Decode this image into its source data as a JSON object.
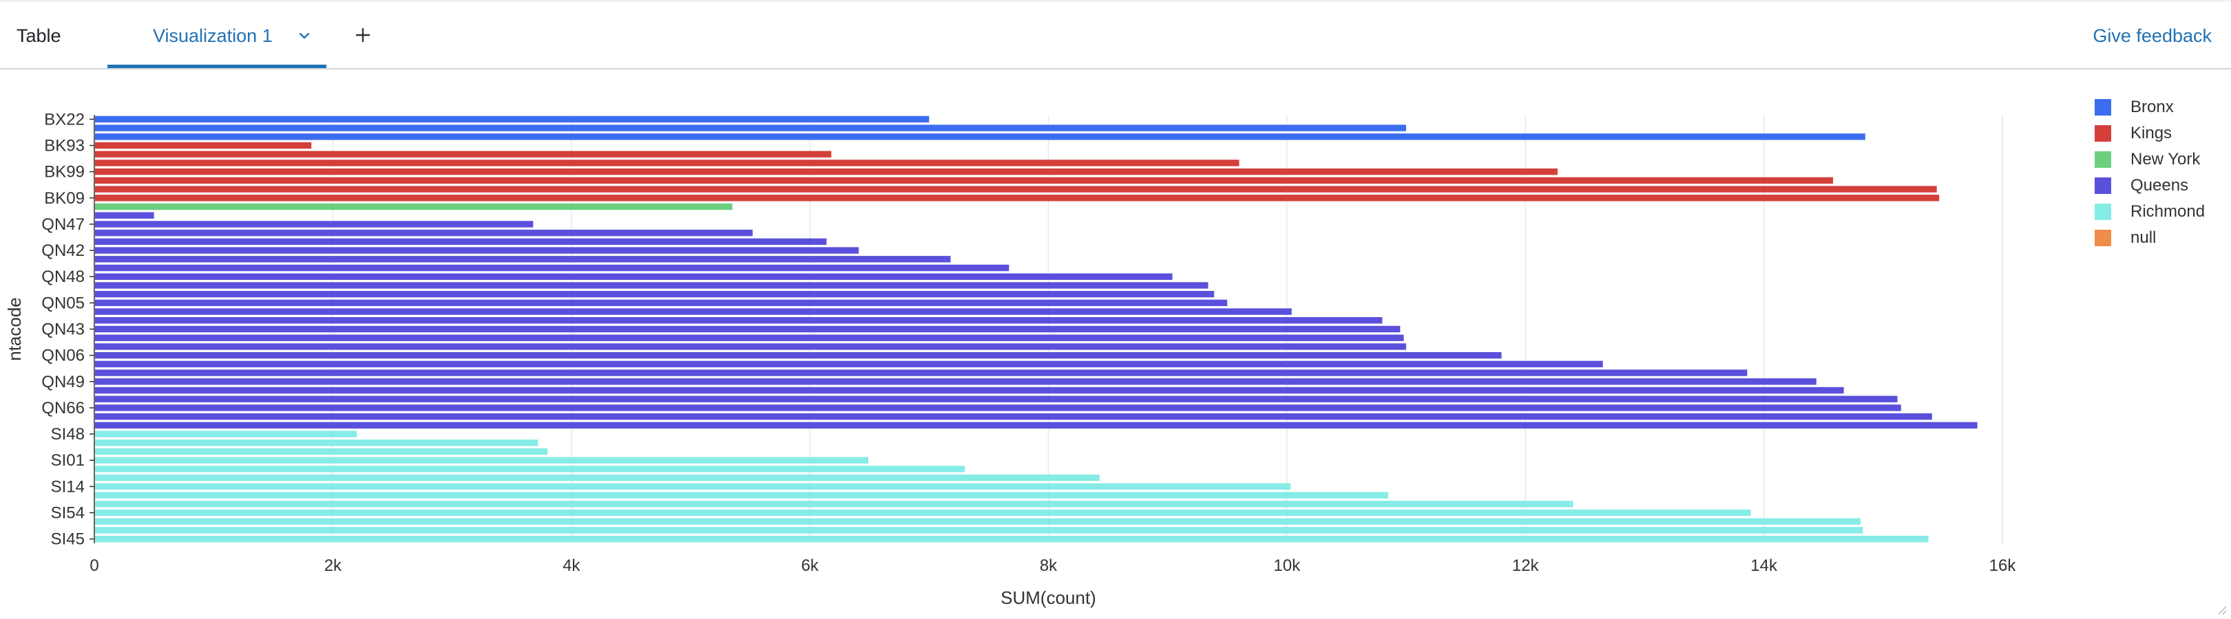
{
  "tabs": {
    "table_label": "Table",
    "visualization_label": "Visualization 1",
    "feedback_label": "Give feedback"
  },
  "icons": {
    "chevron": "chevron-down-icon",
    "add": "plus-icon",
    "resize": "resize-handle-icon"
  },
  "chart_data": {
    "type": "bar",
    "orientation": "horizontal",
    "xlabel": "SUM(count)",
    "ylabel": "ntacode",
    "xlim": [
      0,
      16000
    ],
    "x_ticks": [
      "0",
      "2k",
      "4k",
      "6k",
      "8k",
      "10k",
      "12k",
      "14k",
      "16k"
    ],
    "y_tick_labels": [
      "BX22",
      "BK93",
      "BK99",
      "BK09",
      "QN47",
      "QN42",
      "QN48",
      "QN05",
      "QN43",
      "QN06",
      "QN49",
      "QN66",
      "SI48",
      "SI01",
      "SI14",
      "SI54",
      "SI45"
    ],
    "grid": true,
    "legend_position": "right",
    "legend": [
      {
        "name": "Bronx",
        "color": "#3c6df0"
      },
      {
        "name": "Kings",
        "color": "#d43f3a"
      },
      {
        "name": "New York",
        "color": "#6bcf7e"
      },
      {
        "name": "Queens",
        "color": "#5b50dc"
      },
      {
        "name": "Richmond",
        "color": "#86ece6"
      },
      {
        "name": "null",
        "color": "#ee8e4a"
      }
    ],
    "bars": [
      {
        "series": "Bronx",
        "value": 7000
      },
      {
        "series": "Bronx",
        "value": 11000
      },
      {
        "series": "Bronx",
        "value": 14850
      },
      {
        "series": "Kings",
        "value": 1820
      },
      {
        "series": "Kings",
        "value": 6180
      },
      {
        "series": "Kings",
        "value": 9600
      },
      {
        "series": "Kings",
        "value": 12270
      },
      {
        "series": "Kings",
        "value": 14580
      },
      {
        "series": "Kings",
        "value": 15450
      },
      {
        "series": "Kings",
        "value": 15470
      },
      {
        "series": "New York",
        "value": 5350
      },
      {
        "series": "Queens",
        "value": 500
      },
      {
        "series": "Queens",
        "value": 3680
      },
      {
        "series": "Queens",
        "value": 5520
      },
      {
        "series": "Queens",
        "value": 6140
      },
      {
        "series": "Queens",
        "value": 6410
      },
      {
        "series": "Queens",
        "value": 7180
      },
      {
        "series": "Queens",
        "value": 7670
      },
      {
        "series": "Queens",
        "value": 9040
      },
      {
        "series": "Queens",
        "value": 9340
      },
      {
        "series": "Queens",
        "value": 9390
      },
      {
        "series": "Queens",
        "value": 9500
      },
      {
        "series": "Queens",
        "value": 10040
      },
      {
        "series": "Queens",
        "value": 10800
      },
      {
        "series": "Queens",
        "value": 10950
      },
      {
        "series": "Queens",
        "value": 10980
      },
      {
        "series": "Queens",
        "value": 11000
      },
      {
        "series": "Queens",
        "value": 11800
      },
      {
        "series": "Queens",
        "value": 12650
      },
      {
        "series": "Queens",
        "value": 13860
      },
      {
        "series": "Queens",
        "value": 14440
      },
      {
        "series": "Queens",
        "value": 14670
      },
      {
        "series": "Queens",
        "value": 15120
      },
      {
        "series": "Queens",
        "value": 15150
      },
      {
        "series": "Queens",
        "value": 15410
      },
      {
        "series": "Queens",
        "value": 15790
      },
      {
        "series": "Richmond",
        "value": 2200
      },
      {
        "series": "Richmond",
        "value": 3720
      },
      {
        "series": "Richmond",
        "value": 3800
      },
      {
        "series": "Richmond",
        "value": 6490
      },
      {
        "series": "Richmond",
        "value": 7300
      },
      {
        "series": "Richmond",
        "value": 8430
      },
      {
        "series": "Richmond",
        "value": 10030
      },
      {
        "series": "Richmond",
        "value": 10850
      },
      {
        "series": "Richmond",
        "value": 12400
      },
      {
        "series": "Richmond",
        "value": 13890
      },
      {
        "series": "Richmond",
        "value": 14810
      },
      {
        "series": "Richmond",
        "value": 14830
      },
      {
        "series": "Richmond",
        "value": 15380
      }
    ]
  }
}
